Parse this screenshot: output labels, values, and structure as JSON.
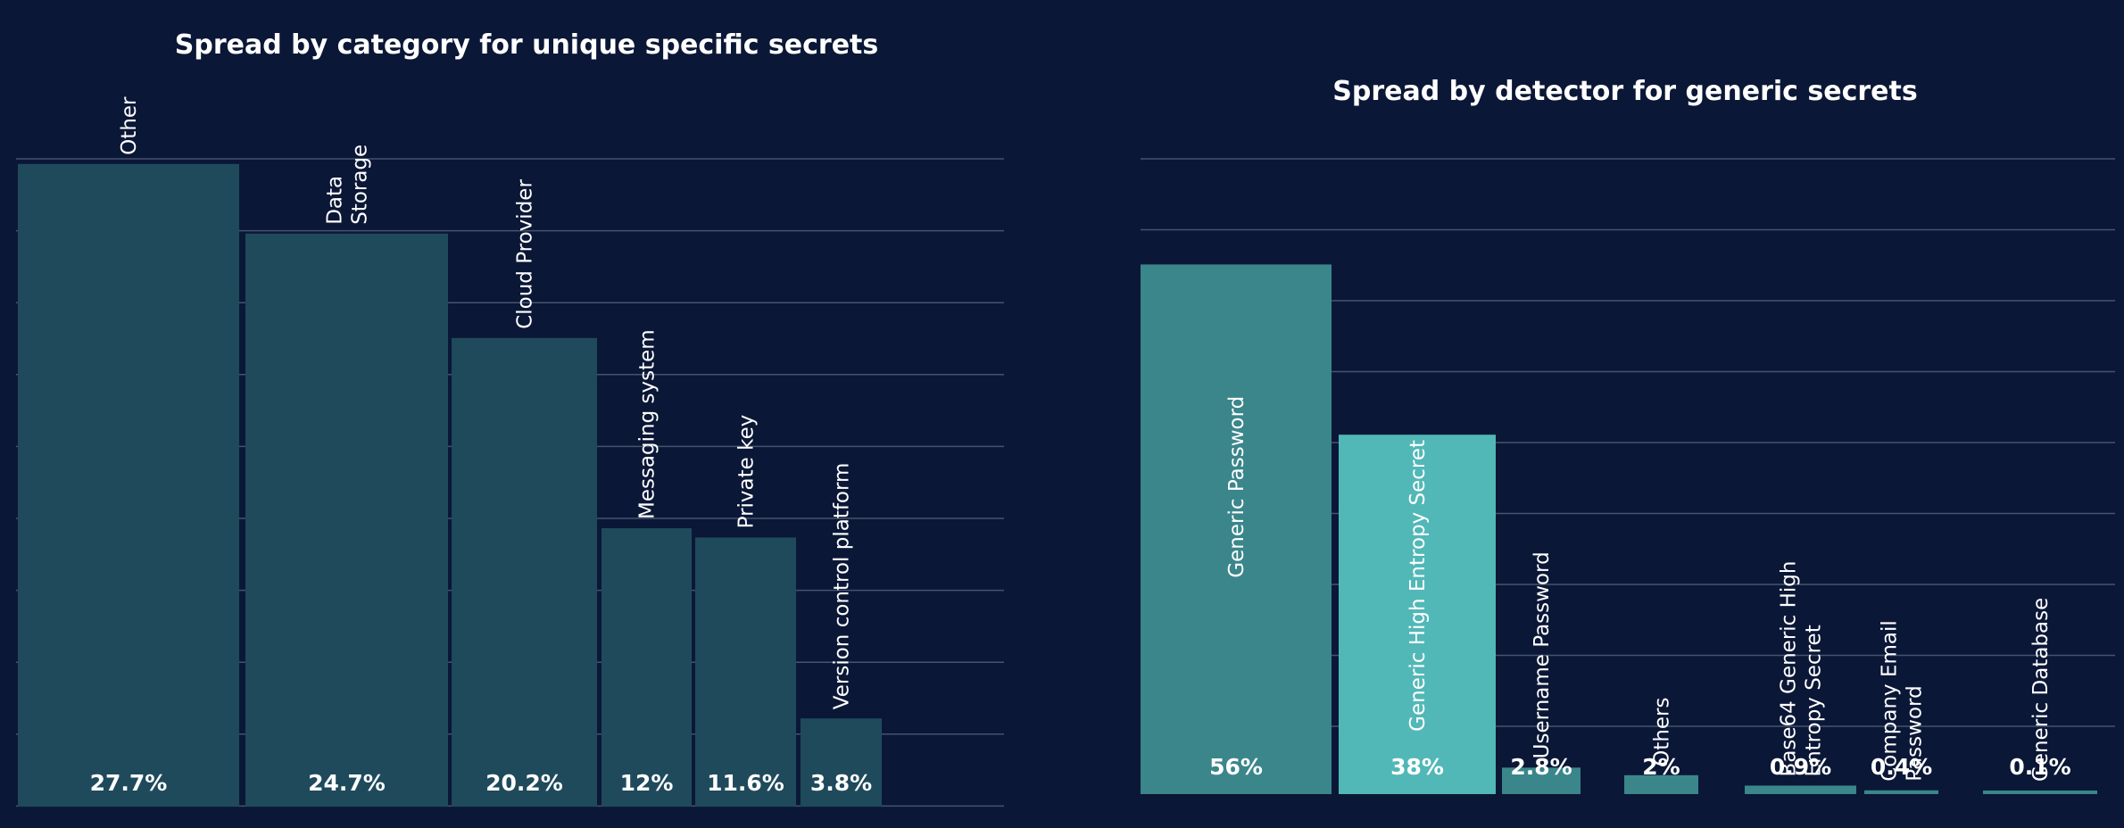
{
  "chart_data": [
    {
      "type": "bar",
      "title": "Spread by category for unique specific secrets",
      "categories": [
        "Other",
        "Data Storage",
        "Cloud Provider",
        "Messaging system",
        "Private key",
        "Version control platform"
      ],
      "category_lines": [
        [
          "Other"
        ],
        [
          "Data",
          "Storage"
        ],
        [
          "Cloud Provider"
        ],
        [
          "Messaging system"
        ],
        [
          "Private key"
        ],
        [
          "Version control platform"
        ]
      ],
      "values": [
        27.7,
        24.7,
        20.2,
        12,
        11.6,
        3.8
      ],
      "value_labels": [
        "27.7%",
        "24.7%",
        "20.2%",
        "12%",
        "11.6%",
        "3.8%"
      ],
      "label_position": "inside",
      "ylim": [
        0,
        31
      ],
      "xlabel": "",
      "ylabel": "",
      "grid": true,
      "bar_color": "#1f4a5c"
    },
    {
      "type": "bar",
      "title": "Spread by detector for generic secrets",
      "categories": [
        "Generic Password",
        "Generic High Entropy Secret",
        "Username Password",
        "Others",
        "Base64 Generic High Entropy Secret",
        "Company Email Password",
        "Generic Database"
      ],
      "category_lines": [
        [
          "Generic Password"
        ],
        [
          "Generic High Entropy Secret"
        ],
        [
          "Username Password"
        ],
        [
          "Others"
        ],
        [
          "Base64 Generic High",
          "Entropy Secret"
        ],
        [
          "Company Email",
          "Password"
        ],
        [
          "Generic Database"
        ]
      ],
      "values": [
        56,
        38,
        2.8,
        2,
        0.9,
        0.4,
        0.1
      ],
      "value_labels": [
        "56%",
        "38%",
        "2.8%",
        "2%",
        "0.9%",
        "0.4%",
        "0.1%"
      ],
      "label_position": "inside",
      "ylim": [
        0,
        75
      ],
      "xlabel": "",
      "ylabel": "",
      "grid": true,
      "bar_colors": [
        "#3a868b",
        "#51b8b7",
        "#3a868b",
        "#3a868b",
        "#3a868b",
        "#3a868b",
        "#3a868b"
      ]
    }
  ]
}
